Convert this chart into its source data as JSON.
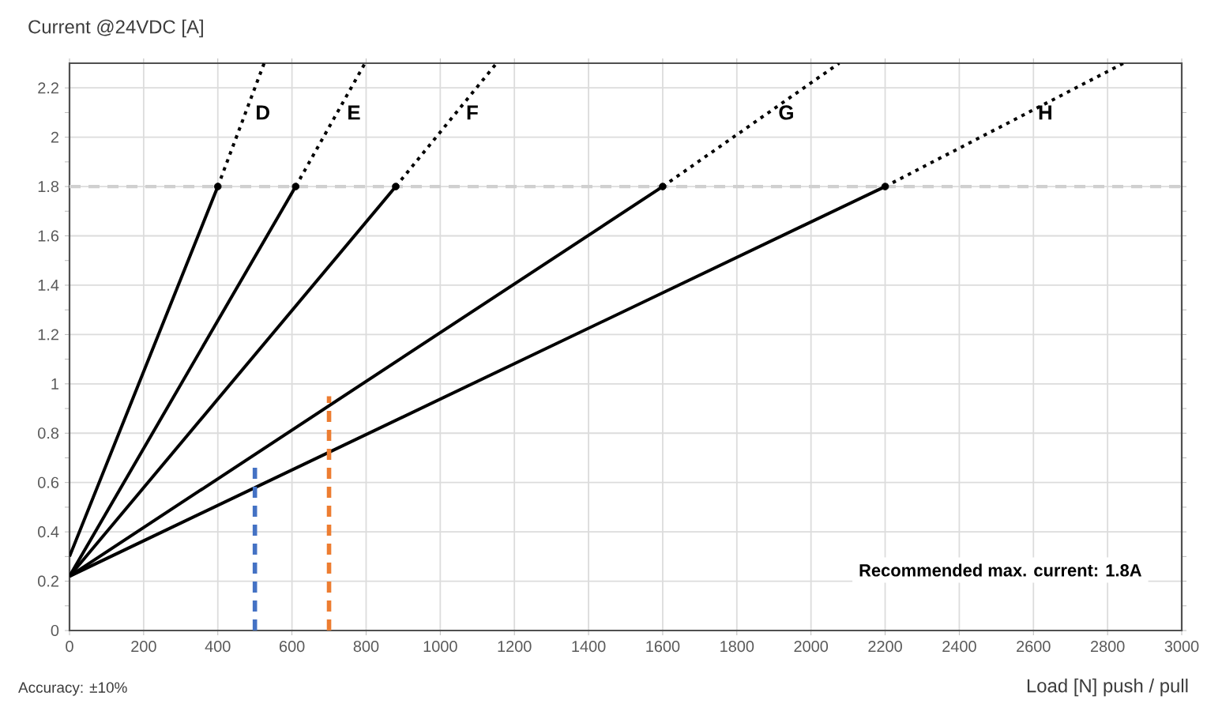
{
  "chart_data": {
    "type": "line",
    "ylabel": "Current @24VDC [A]",
    "xlabel": "Load [N] push / pull",
    "xlim": [
      0,
      3000
    ],
    "ylim": [
      0,
      2.3
    ],
    "xticks": [
      0,
      200,
      400,
      600,
      800,
      1000,
      1200,
      1400,
      1600,
      1800,
      2000,
      2200,
      2400,
      2600,
      2800,
      3000
    ],
    "yticks": [
      0,
      0.2,
      0.4,
      0.6,
      0.8,
      1,
      1.2,
      1.4,
      1.6,
      1.8,
      2,
      2.2
    ],
    "grid": true,
    "series": [
      {
        "color": "#000000",
        "line_style": "solid",
        "x": [
          0,
          400
        ],
        "values": [
          0.3,
          1.8
        ]
      },
      {
        "name": "D",
        "color": "#000000",
        "line_style": "dotted",
        "x": [
          400,
          525
        ],
        "values": [
          1.8,
          2.3
        ]
      },
      {
        "color": "#000000",
        "line_style": "solid",
        "x": [
          0,
          610
        ],
        "values": [
          0.22,
          1.8
        ]
      },
      {
        "name": "E",
        "color": "#000000",
        "line_style": "dotted",
        "x": [
          610,
          797
        ],
        "values": [
          1.8,
          2.3
        ]
      },
      {
        "color": "#000000",
        "line_style": "solid",
        "x": [
          0,
          880
        ],
        "values": [
          0.22,
          1.8
        ]
      },
      {
        "name": "F",
        "color": "#000000",
        "line_style": "dotted",
        "x": [
          880,
          1152
        ],
        "values": [
          1.8,
          2.3
        ]
      },
      {
        "color": "#000000",
        "line_style": "solid",
        "x": [
          0,
          1600
        ],
        "values": [
          0.22,
          1.8
        ]
      },
      {
        "name": "G",
        "color": "#000000",
        "line_style": "dotted",
        "x": [
          1600,
          2076
        ],
        "values": [
          1.8,
          2.3
        ]
      },
      {
        "color": "#000000",
        "line_style": "solid",
        "x": [
          0,
          2200
        ],
        "values": [
          0.22,
          1.8
        ]
      },
      {
        "name": "H",
        "color": "#000000",
        "line_style": "dotted",
        "x": [
          2200,
          2843
        ],
        "values": [
          1.8,
          2.3
        ]
      },
      {
        "type": "scatter",
        "marker": "circle",
        "color": "#000000",
        "x": [
          400,
          610,
          880,
          1600,
          2200
        ],
        "values": [
          1.8,
          1.8,
          1.8,
          1.8,
          1.8
        ]
      },
      {
        "color": "#4472c4",
        "line_style": "dashed",
        "x": [
          500,
          500
        ],
        "values": [
          0,
          0.67
        ]
      },
      {
        "color": "#ed7d31",
        "line_style": "dashed",
        "x": [
          700,
          700
        ],
        "values": [
          0,
          0.95
        ]
      }
    ],
    "ref_lines": [
      {
        "axis": "y",
        "value": 1.8,
        "color": "#d0d0d0",
        "line_style": "dashed"
      }
    ],
    "annotations": [
      "Recommended max. current: 1.8A",
      "Accuracy: ±10%"
    ]
  }
}
